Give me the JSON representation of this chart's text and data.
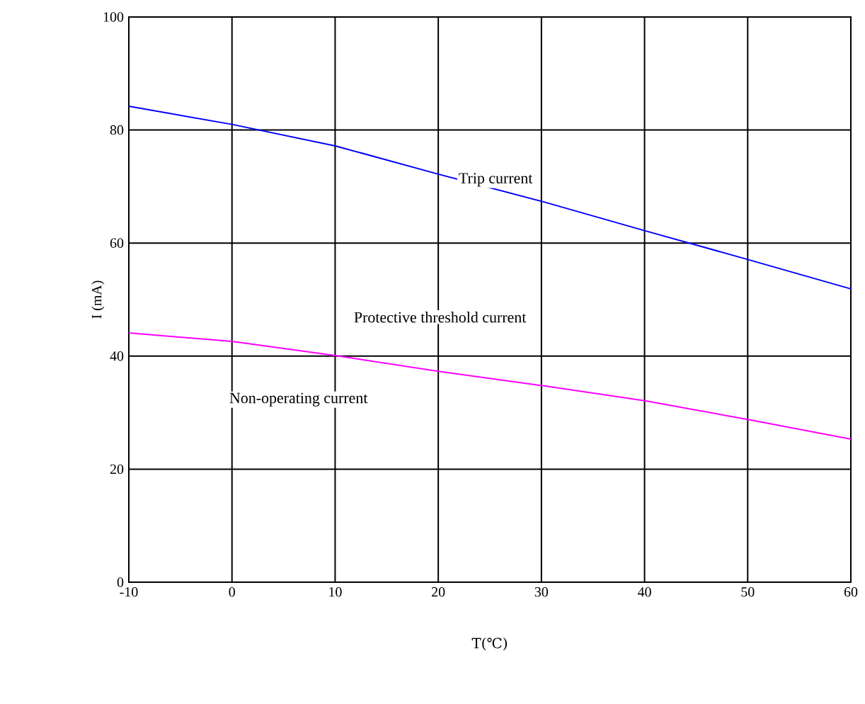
{
  "chart_data": {
    "type": "line",
    "xlabel": "T(℃)",
    "ylabel": "I  (mA)",
    "xlim": [
      -10,
      60
    ],
    "ylim": [
      0,
      100
    ],
    "xticks": [
      -10,
      0,
      10,
      20,
      30,
      40,
      50,
      60
    ],
    "yticks": [
      0,
      20,
      40,
      60,
      80,
      100
    ],
    "grid": true,
    "marker": "none",
    "line_style": "solid",
    "series": [
      {
        "name": "Trip current",
        "color": "#0000ff",
        "x": [
          -10,
          0,
          10,
          20,
          30,
          40,
          50,
          60
        ],
        "values": [
          84.2,
          81,
          77.2,
          72.2,
          67.4,
          62.2,
          57.1,
          51.9
        ]
      },
      {
        "color": "#ff00ff",
        "x": [
          -10,
          0,
          10,
          20,
          30,
          40,
          50,
          60
        ],
        "values": [
          44.1,
          42.6,
          40.1,
          37.3,
          34.8,
          32.1,
          28.8,
          25.3
        ]
      }
    ],
    "annotations": [
      "Protective threshold current",
      "Non-operating current"
    ]
  }
}
